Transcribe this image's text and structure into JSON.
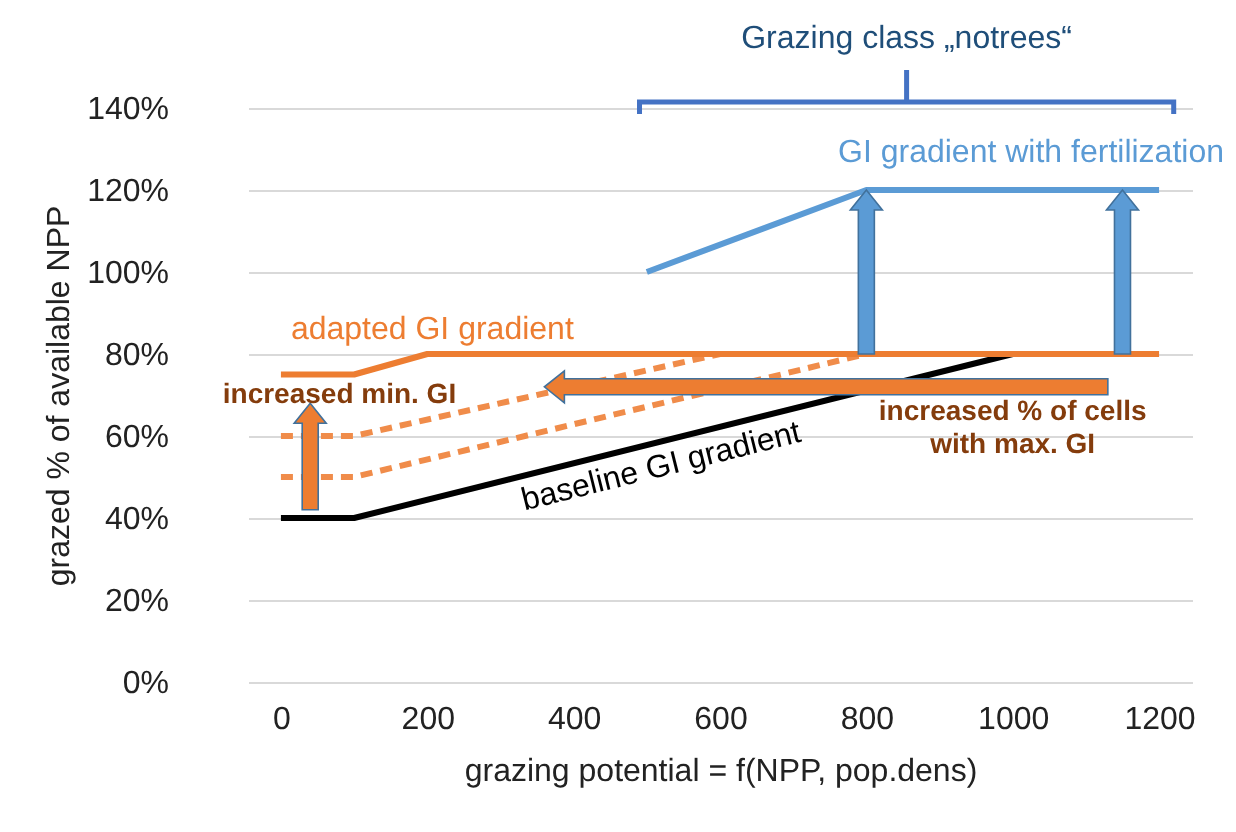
{
  "chart_data": {
    "type": "line",
    "xlabel": "grazing potential = f(NPP, pop.dens)",
    "ylabel": "grazed % of available NPP",
    "xlim": [
      -45,
      1245
    ],
    "xticks": [
      0,
      200,
      400,
      600,
      800,
      1000,
      1200
    ],
    "ylim": [
      0,
      140
    ],
    "yticks": [
      {
        "value": 0,
        "label": "0%"
      },
      {
        "value": 20,
        "label": "20%"
      },
      {
        "value": 40,
        "label": "40%"
      },
      {
        "value": 60,
        "label": "60%"
      },
      {
        "value": 80,
        "label": "80%"
      },
      {
        "value": 100,
        "label": "100%"
      },
      {
        "value": 120,
        "label": "120%"
      },
      {
        "value": 140,
        "label": "140%"
      }
    ],
    "grid": "y",
    "marker": "none",
    "series": [
      {
        "name": "baseline GI gradient",
        "color": "#000000",
        "x": [
          0,
          100,
          1000
        ],
        "values": [
          40,
          40,
          80
        ]
      },
      {
        "color": "#f08c4a",
        "line_style": "dashed",
        "x": [
          0,
          100,
          800
        ],
        "values": [
          50,
          50,
          80
        ]
      },
      {
        "color": "#f08c4a",
        "line_style": "dashed",
        "x": [
          0,
          100,
          600
        ],
        "values": [
          60,
          60,
          80
        ]
      },
      {
        "name": "adapted GI gradient",
        "color": "#ed7d31",
        "x": [
          0,
          100,
          200,
          1200
        ],
        "values": [
          75,
          75,
          80,
          80
        ]
      },
      {
        "name": "GI gradient with fertilization",
        "color": "#5b9bd5",
        "x": [
          500,
          800,
          1200
        ],
        "values": [
          100,
          120,
          120
        ]
      }
    ],
    "annotations": [
      "Grazing class „notrees“",
      "increased min. GI",
      "increased % of cells\nwith max. GI"
    ]
  }
}
